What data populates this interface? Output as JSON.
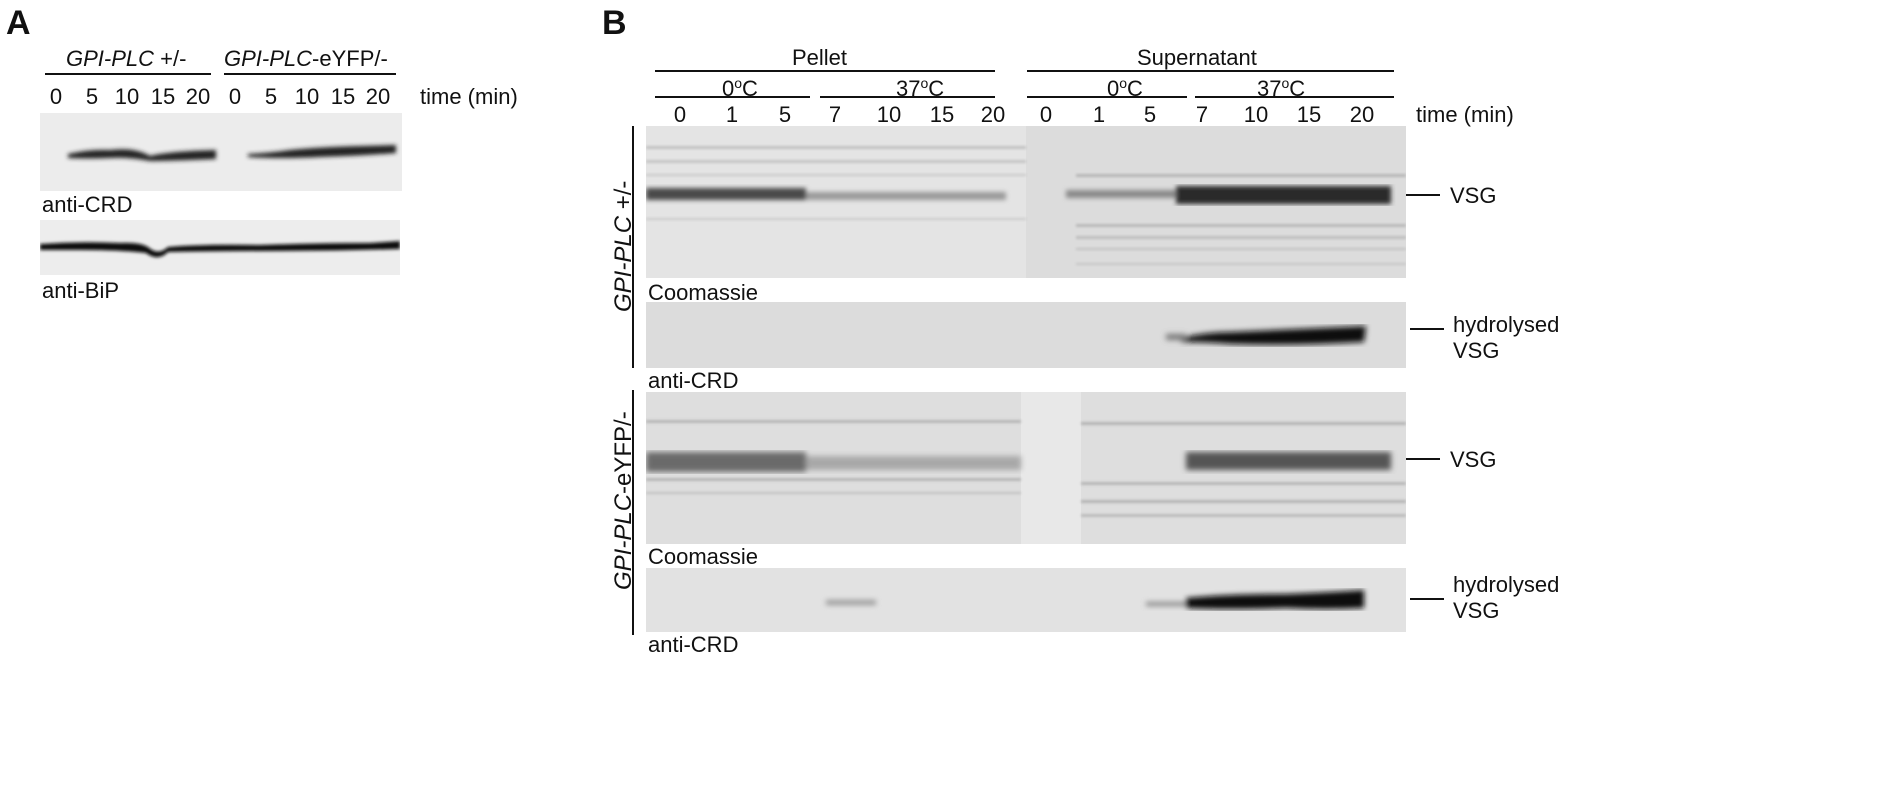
{
  "panel_a": {
    "letter": "A",
    "group_labels": [
      {
        "italic": "GPI-PLC",
        "rest": " +/-"
      },
      {
        "italic": "GPI-PLC",
        "rest": "-eYFP/-"
      }
    ],
    "lanes": [
      "0",
      "5",
      "10",
      "15",
      "20",
      "0",
      "5",
      "10",
      "15",
      "20"
    ],
    "time_label": "time (min)",
    "blot_labels": [
      "anti-CRD",
      "anti-BiP"
    ]
  },
  "panel_b": {
    "letter": "B",
    "fraction_labels": [
      "Pellet",
      "Supernatant"
    ],
    "temp_zero": "0",
    "temp_37": "37",
    "degree_sup": "o",
    "degree_unit": "C",
    "lanes": [
      "0",
      "1",
      "5",
      "7",
      "10",
      "15",
      "20",
      "0",
      "1",
      "5",
      "7",
      "10",
      "15",
      "20"
    ],
    "time_label": "time (min)",
    "strain_labels": [
      {
        "italic": "GPI-PLC",
        "rest": " +/-"
      },
      {
        "italic": "GPI-PLC",
        "rest": "-eYFP/-"
      }
    ],
    "stain_labels": [
      "Coomassie",
      "anti-CRD",
      "Coomassie",
      "anti-CRD"
    ],
    "band_labels": [
      "VSG",
      "hydrolysed",
      "VSG",
      "VSG",
      "hydrolysed",
      "VSG"
    ]
  }
}
